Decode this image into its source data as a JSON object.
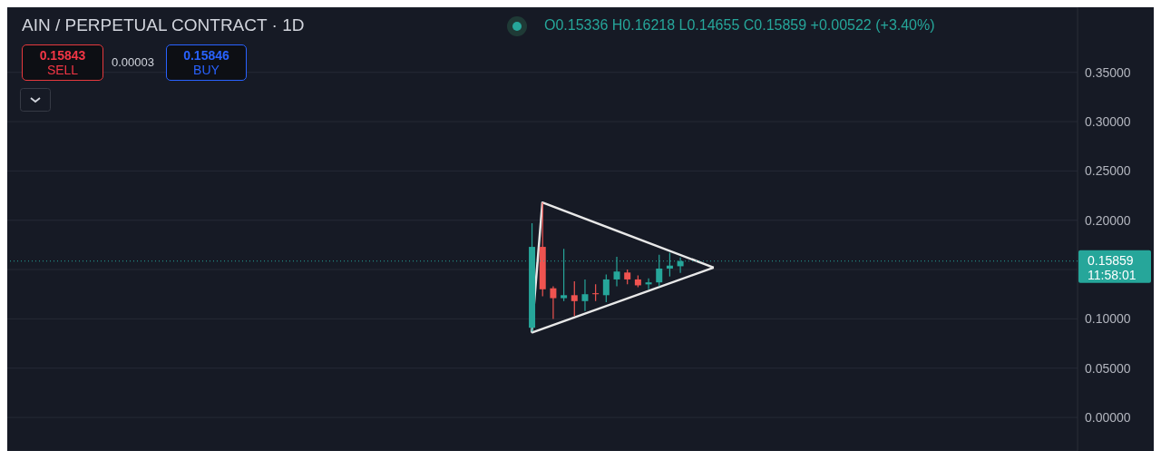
{
  "chart_data": {
    "type": "candlestick",
    "title": "AIN / PERPETUAL CONTRACT · 1D",
    "categories": [
      null,
      null,
      null,
      null,
      null,
      null,
      null,
      null,
      null,
      null,
      null,
      null,
      null,
      null,
      null,
      null,
      null,
      null,
      null,
      null,
      null,
      null,
      null,
      null,
      null,
      null,
      null,
      null,
      null,
      null,
      null,
      null,
      null,
      null,
      null,
      null,
      null,
      null,
      null,
      null,
      null,
      null,
      null,
      null,
      null,
      null,
      null,
      null,
      null,
      null,
      null,
      null,
      null,
      null,
      null,
      null,
      null,
      null,
      null,
      null,
      null,
      null,
      null,
      null,
      null,
      null,
      null,
      null,
      null,
      null,
      null,
      null,
      null,
      null,
      null,
      null,
      null,
      null,
      null,
      null,
      null,
      null,
      null,
      null,
      null,
      null,
      null,
      null,
      null,
      null,
      null,
      null,
      null,
      null,
      null,
      null,
      null,
      null,
      null,
      null,
      null
    ],
    "ohlc": [
      null,
      null,
      null,
      null,
      null,
      null,
      null,
      null,
      null,
      null,
      null,
      null,
      null,
      null,
      null,
      null,
      null,
      null,
      null,
      null,
      null,
      null,
      null,
      null,
      null,
      null,
      null,
      null,
      null,
      null,
      null,
      null,
      null,
      null,
      null,
      null,
      null,
      null,
      null,
      null,
      null,
      null,
      null,
      null,
      null,
      null,
      null,
      null,
      null,
      [
        0.091,
        0.197,
        0.087,
        0.173
      ],
      [
        0.173,
        0.218,
        0.123,
        0.13
      ],
      [
        0.131,
        0.133,
        0.1,
        0.121
      ],
      [
        0.121,
        0.171,
        0.118,
        0.124
      ],
      [
        0.124,
        0.138,
        0.103,
        0.118
      ],
      [
        0.118,
        0.14,
        0.108,
        0.125
      ],
      [
        0.126,
        0.135,
        0.118,
        0.125
      ],
      [
        0.124,
        0.145,
        0.117,
        0.14
      ],
      [
        0.14,
        0.163,
        0.133,
        0.148
      ],
      [
        0.147,
        0.15,
        0.135,
        0.14
      ],
      [
        0.14,
        0.144,
        0.132,
        0.134
      ],
      [
        0.135,
        0.141,
        0.13,
        0.137
      ],
      [
        0.137,
        0.165,
        0.133,
        0.151
      ],
      [
        0.151,
        0.167,
        0.143,
        0.154
      ],
      [
        0.15336,
        0.16218,
        0.14655,
        0.15859
      ],
      null,
      null,
      null,
      null,
      null,
      null,
      null,
      null,
      null,
      null,
      null,
      null,
      null,
      null,
      null,
      null,
      null,
      null,
      null,
      null,
      null,
      null,
      null,
      null,
      null,
      null,
      null,
      null,
      null,
      null,
      null,
      null,
      null,
      null,
      null,
      null,
      null
    ],
    "colors": [
      null,
      null,
      null,
      null,
      null,
      null,
      null,
      null,
      null,
      null,
      null,
      null,
      null,
      null,
      null,
      null,
      null,
      null,
      null,
      null,
      null,
      null,
      null,
      null,
      null,
      null,
      null,
      null,
      null,
      null,
      null,
      null,
      null,
      null,
      null,
      null,
      null,
      null,
      null,
      null,
      null,
      null,
      null,
      null,
      null,
      null,
      null,
      null,
      null,
      "#26a69a",
      "#ef5350",
      "#ef5350",
      "#26a69a",
      "#ef5350",
      "#26a69a",
      "#ef5350",
      "#26a69a",
      "#26a69a",
      "#ef5350",
      "#ef5350",
      "#26a69a",
      "#26a69a",
      "#26a69a",
      "#26a69a",
      null,
      null,
      null,
      null,
      null,
      null,
      null,
      null,
      null,
      null,
      null,
      null,
      null,
      null,
      null,
      null,
      null,
      null,
      null,
      null,
      null,
      null,
      null,
      null,
      null,
      null,
      null,
      null,
      null,
      null,
      null,
      null,
      null,
      null,
      null,
      null,
      null
    ],
    "series": [
      {
        "type": "line",
        "color": "#e8e8e8",
        "values": [
          null,
          null,
          null,
          null,
          null,
          null,
          null,
          null,
          null,
          null,
          null,
          null,
          null,
          null,
          null,
          null,
          null,
          null,
          null,
          null,
          null,
          null,
          null,
          null,
          null,
          null,
          null,
          null,
          null,
          null,
          null,
          null,
          null,
          null,
          null,
          null,
          null,
          null,
          null,
          null,
          null,
          null,
          null,
          null,
          null,
          null,
          null,
          null,
          null,
          0.086,
          0.218,
          null,
          null,
          null,
          null,
          null,
          null,
          null,
          null,
          null,
          null,
          null,
          null,
          null,
          null,
          null,
          0.152,
          null,
          null,
          null,
          null,
          null,
          null,
          null,
          null,
          null,
          null,
          null,
          null,
          null,
          null,
          null,
          null,
          null,
          null,
          null,
          null,
          null,
          null,
          null,
          null,
          null,
          null,
          null,
          null,
          null,
          null,
          null,
          null,
          null,
          null
        ]
      },
      {
        "type": "line",
        "color": "#e8e8e8",
        "values": [
          null,
          null,
          null,
          null,
          null,
          null,
          null,
          null,
          null,
          null,
          null,
          null,
          null,
          null,
          null,
          null,
          null,
          null,
          null,
          null,
          null,
          null,
          null,
          null,
          null,
          null,
          null,
          null,
          null,
          null,
          null,
          null,
          null,
          null,
          null,
          null,
          null,
          null,
          null,
          null,
          null,
          null,
          null,
          null,
          null,
          null,
          null,
          null,
          null,
          0.086,
          null,
          null,
          null,
          null,
          null,
          null,
          null,
          null,
          null,
          null,
          null,
          null,
          null,
          null,
          null,
          null,
          0.152,
          null,
          null,
          null,
          null,
          null,
          null,
          null,
          null,
          null,
          null,
          null,
          null,
          null,
          null,
          null,
          null,
          null,
          null,
          null,
          null,
          null,
          null,
          null,
          null,
          null,
          null,
          null,
          null,
          null,
          null,
          null,
          null,
          null,
          null
        ]
      }
    ],
    "ylim": [
      -0.034,
      0.416
    ],
    "yticks": [
      {
        "value": 0,
        "label": "0.00000"
      },
      {
        "value": 0.05,
        "label": "0.05000"
      },
      {
        "value": 0.1,
        "label": "0.10000"
      },
      {
        "value": 0.15,
        "label": null
      },
      {
        "value": 0.2,
        "label": "0.20000"
      },
      {
        "value": 0.25,
        "label": "0.25000"
      },
      {
        "value": 0.3,
        "label": "0.30000"
      },
      {
        "value": 0.35,
        "label": "0.35000"
      }
    ],
    "grid": "y",
    "tick_labels": "y",
    "marker": "none",
    "line_style": "solid",
    "ref_lines": [
      {
        "axis": "y",
        "value": 0.15859,
        "label": "0.15859",
        "color": "#26a69a",
        "line_style": "dotted"
      }
    ],
    "annotations": [
      "O0.15336 H0.16218 L0.14655 C0.15859 +0.00522 (+3.40%)",
      "0.15843",
      "SELL",
      "0.00003",
      "0.15846",
      "BUY",
      "11:58:01"
    ]
  }
}
